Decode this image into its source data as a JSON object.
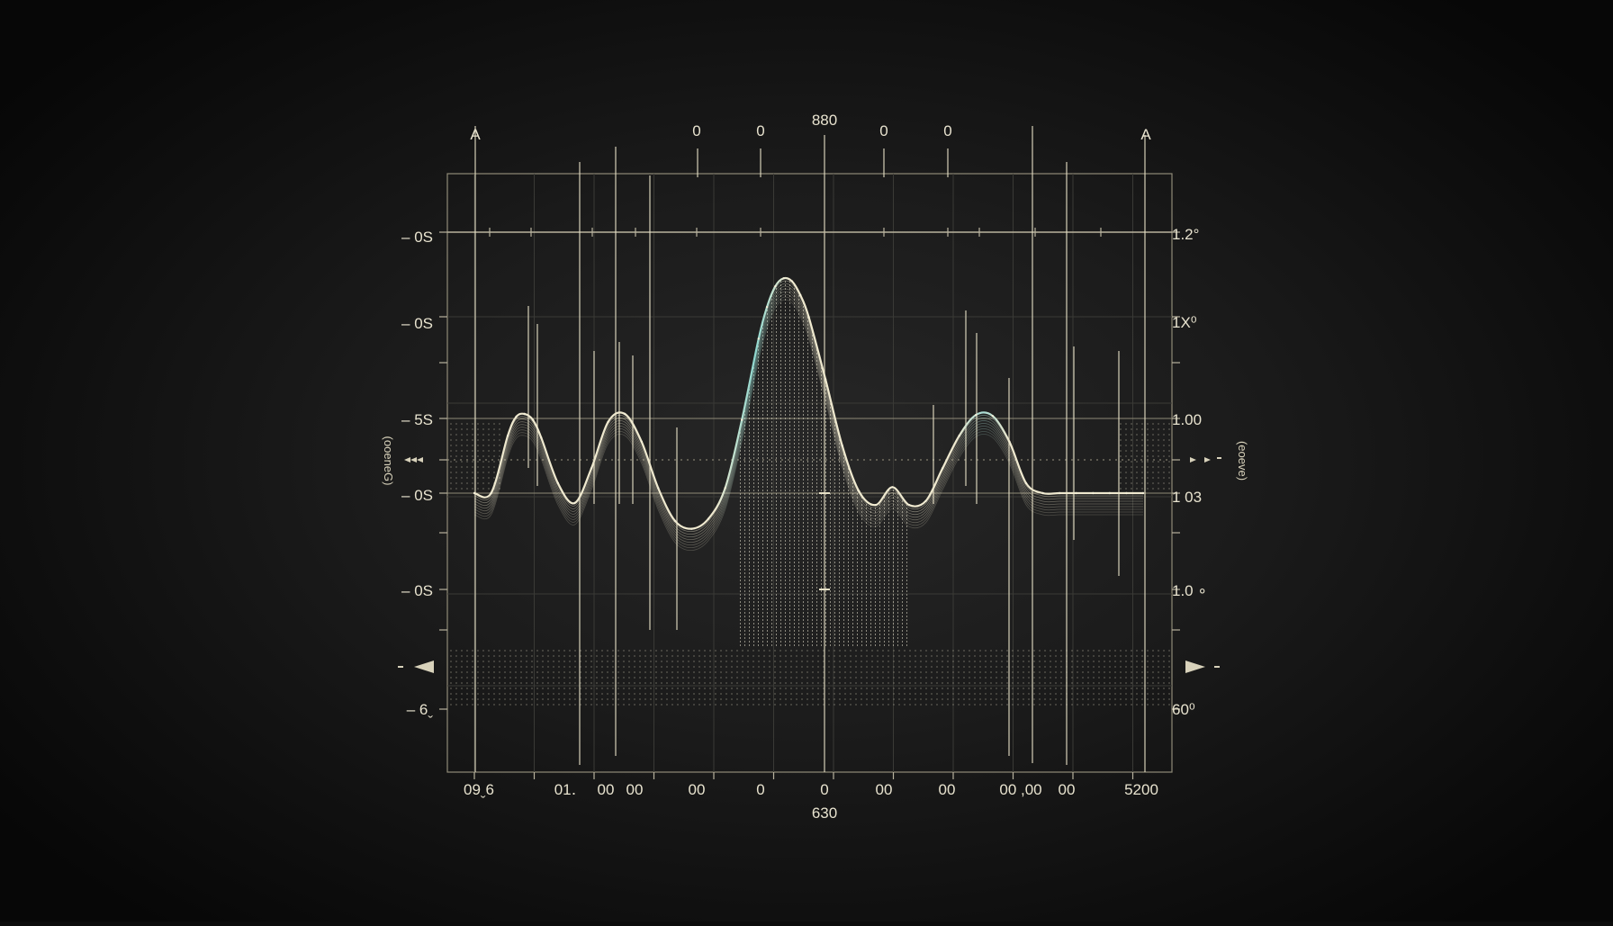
{
  "chart_data": {
    "type": "line",
    "title": "",
    "top_marker_label": "880",
    "corner_markers": [
      "A",
      "A"
    ],
    "top_tick_markers": [
      "0",
      "0",
      "0",
      "0"
    ],
    "x_center_label": "630",
    "xlabel": "",
    "ylabel": "",
    "left_axis_side_label": "(ooeneG)",
    "right_axis_side_label": "(eoeve)",
    "x_tick_labels": [
      "09ˬ6",
      "01․",
      "00",
      "00",
      "00",
      "0",
      "0",
      "00",
      "00",
      "00 ,00",
      "00",
      "5200"
    ],
    "left_tick_labels": [
      "– 0S",
      "– 0S",
      "– 5S",
      "– 0S",
      "– 0S",
      "– 6ˬ"
    ],
    "right_tick_labels": [
      "1.2°",
      "1X⁰",
      "1.00",
      "1 03",
      "1.0 ∘",
      "60⁰"
    ],
    "grid": true,
    "series": [
      {
        "x": [
          0,
          20,
          40,
          50,
          60,
          70,
          80,
          100,
          120,
          140,
          160,
          180,
          200,
          220,
          240,
          260,
          280,
          300,
          320,
          340,
          350,
          360,
          370,
          380,
          390,
          400,
          420,
          440,
          460,
          480,
          500,
          520,
          540,
          560,
          580,
          600,
          620,
          640,
          660,
          680,
          700,
          720,
          740,
          760,
          780,
          800
        ],
        "y": [
          0,
          0,
          0.58,
          0.77,
          0.8,
          0.74,
          0.56,
          0.1,
          -0.1,
          0.25,
          0.72,
          0.8,
          0.52,
          0.05,
          -0.28,
          -0.36,
          -0.26,
          0.05,
          0.74,
          1.56,
          1.88,
          2.09,
          2.17,
          2.14,
          2.0,
          1.78,
          1.15,
          0.48,
          0.02,
          -0.12,
          0.06,
          -0.12,
          -0.08,
          0.25,
          0.58,
          0.79,
          0.78,
          0.52,
          0.1,
          0,
          0,
          0,
          0,
          0,
          0,
          0
        ]
      }
    ]
  }
}
